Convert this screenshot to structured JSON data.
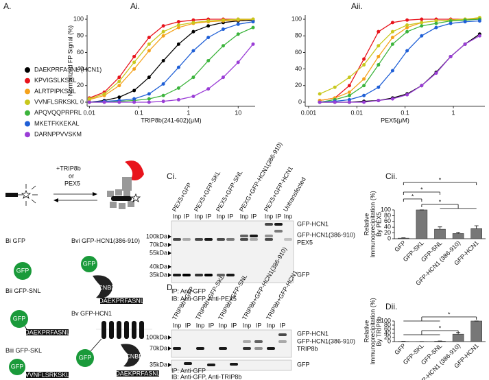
{
  "panel_labels": {
    "a": "A.",
    "ai": "Ai.",
    "aii": "Aii.",
    "ci": "Ci.",
    "cii": "Cii.",
    "d": "D.",
    "dii": "Dii."
  },
  "chart_data": [
    {
      "type": "line",
      "xscale": "log",
      "x": [
        0.01,
        0.02,
        0.04,
        0.08,
        0.16,
        0.31,
        0.63,
        1.25,
        2.5,
        5,
        10,
        20
      ],
      "xlim": [
        0.009,
        22
      ],
      "xticks": [
        0.01,
        0.1,
        1,
        10
      ],
      "ylim": [
        -5,
        105
      ],
      "yticks": [
        0,
        20,
        40,
        60,
        80,
        100
      ],
      "x_label": "TRIP8b(241-602)(μM)",
      "y_label": "Normalized FP Signal (%)",
      "series": [
        {
          "name": "DAEKPRFASNL (HCN1)",
          "color": "#000000",
          "values": [
            0,
            2,
            6,
            14,
            30,
            50,
            70,
            85,
            92,
            96,
            98,
            99
          ]
        },
        {
          "name": "KPVIGSLKSKL",
          "color": "#e8141c",
          "values": [
            5,
            12,
            30,
            55,
            78,
            92,
            97,
            99,
            100,
            100,
            100,
            100
          ]
        },
        {
          "name": "ALRTPIPKSNL",
          "color": "#f5a21b",
          "values": [
            3,
            8,
            20,
            40,
            62,
            80,
            90,
            95,
            97,
            98,
            99,
            100
          ]
        },
        {
          "name": "VVNFLSRKSKL",
          "color": "#c8c81e",
          "values": [
            4,
            10,
            25,
            48,
            70,
            85,
            93,
            96,
            98,
            99,
            100,
            100
          ]
        },
        {
          "name": "APQVQQPRPRL",
          "color": "#3cb43c",
          "values": [
            0,
            0,
            1,
            2,
            4,
            8,
            17,
            30,
            50,
            68,
            82,
            90
          ]
        },
        {
          "name": "MKETFKKEKAL",
          "color": "#1f5fd6",
          "values": [
            0,
            1,
            2,
            4,
            10,
            22,
            42,
            62,
            78,
            88,
            94,
            97
          ]
        },
        {
          "name": "DARNPPVVSKM",
          "color": "#9a3dd6",
          "values": [
            0,
            0,
            0,
            0,
            0,
            1,
            3,
            7,
            16,
            30,
            48,
            70
          ]
        }
      ]
    },
    {
      "type": "line",
      "xscale": "log",
      "x": [
        0.0017,
        0.0035,
        0.007,
        0.014,
        0.028,
        0.055,
        0.11,
        0.22,
        0.44,
        0.88,
        1.75,
        3.5
      ],
      "xlim": [
        0.00085,
        4.5
      ],
      "xticks": [
        0.001,
        0.01,
        0.1,
        1
      ],
      "ylim": [
        -5,
        105
      ],
      "yticks": [
        0,
        20,
        40,
        60,
        80,
        100
      ],
      "x_label": "PEX5(μM)",
      "series": [
        {
          "color": "#000000",
          "values": [
            0,
            0,
            0,
            1,
            2,
            5,
            10,
            20,
            36,
            55,
            70,
            82
          ]
        },
        {
          "color": "#e8141c",
          "values": [
            2,
            5,
            20,
            52,
            85,
            96,
            99,
            100,
            100,
            100,
            100,
            100
          ]
        },
        {
          "color": "#f5a21b",
          "values": [
            2,
            5,
            12,
            28,
            55,
            78,
            90,
            96,
            98,
            99,
            100,
            101
          ]
        },
        {
          "color": "#c8c81e",
          "values": [
            10,
            18,
            30,
            45,
            68,
            85,
            93,
            96,
            98,
            99,
            100,
            102
          ]
        },
        {
          "color": "#3cb43c",
          "values": [
            0,
            3,
            8,
            20,
            45,
            70,
            85,
            92,
            95,
            98,
            99,
            100
          ]
        },
        {
          "color": "#1f5fd6",
          "values": [
            0,
            1,
            3,
            8,
            18,
            38,
            62,
            80,
            90,
            95,
            97,
            98
          ]
        },
        {
          "color": "#9a3dd6",
          "values": [
            0,
            0,
            0,
            0,
            2,
            4,
            9,
            20,
            35,
            55,
            70,
            80
          ]
        }
      ]
    },
    {
      "type": "bar",
      "categories": [
        "GFP",
        "GFP-SKL",
        "GFP-SNL",
        "GFP-HCN1 (386-910)",
        "GFP-HCN1"
      ],
      "values": [
        2,
        100,
        33,
        18,
        35
      ],
      "errors": [
        1,
        0,
        8,
        4,
        10
      ],
      "color": "#777777",
      "ylim": [
        0,
        100
      ],
      "yticks": [
        0,
        20,
        40,
        60,
        80,
        100
      ],
      "y_label": [
        "Relative",
        "Immunoprecipitation (%)",
        "By PEX5"
      ],
      "annotations": [
        "*",
        "*",
        "*",
        "*"
      ]
    },
    {
      "type": "bar",
      "categories": [
        "GFP",
        "GFP-SKL",
        "GFP-SNL",
        "GFP-HCN1 (386-910)",
        "GFP-HCN1"
      ],
      "values": [
        1,
        0.5,
        2,
        36,
        100
      ],
      "errors": [
        0.5,
        0,
        1,
        8,
        0
      ],
      "color": "#777777",
      "ylim": [
        0,
        100
      ],
      "yticks": [
        0,
        20,
        40,
        60,
        80,
        100
      ],
      "y_label": [
        "Relative",
        "Immunoprecipitation (%)",
        "By TRIP8b"
      ],
      "annotations": [
        "*",
        "*"
      ]
    }
  ],
  "scheme": {
    "reagent": "+TRIP8b",
    "or": "or",
    "alt": "PEX5"
  },
  "constructs": [
    {
      "id": "Bi",
      "name": "GFP",
      "gfp": "GFP"
    },
    {
      "id": "Bii",
      "name": "GFP-SNL",
      "gfp": "GFP",
      "tag": "DAEKPRFASNL"
    },
    {
      "id": "Biii",
      "name": "GFP-SKL",
      "gfp": "GFP",
      "tag": "VVNFLSRKSKL"
    },
    {
      "id": "Bvi",
      "name": "GFP-HCN1(386-910)",
      "gfp": "GFP",
      "domain": "CNBD",
      "tag": "DAEKPRFASNL"
    },
    {
      "id": "Bv",
      "name": "GFP-HCN1",
      "gfp": "GFP",
      "domain": "CNBD",
      "tag": "DAEKPRFASNL"
    }
  ],
  "blots": [
    {
      "lanes": [
        "PEX5+GFP",
        "PEX5+GFP-SKL",
        "PEX5+GFP-SNL",
        "PEXG+GFP-HCN1(386-910)",
        "PEX5+GFP-HCN1",
        "Untransfected"
      ],
      "lane_sub": [
        "Inp",
        "IP"
      ],
      "markers": [
        "100kDa",
        "70kDa",
        "55kDa",
        "40kDa",
        "35kDa"
      ],
      "band_labels": [
        "GFP-HCN1",
        "GFP-HCN1(386-910)",
        "PEX5",
        "GFP"
      ],
      "footer": [
        "IP: Anti-GFP",
        "IB: Anti-GFP, Anti-PEX5"
      ]
    },
    {
      "lanes": [
        "TRIP8b+GFP",
        "TRIP8b+GFP-SKL",
        "TRIP8b+GFP-SNL",
        "TRIP8b+GFP-HCN1(386-910)",
        "TRIP8b+GFP-HCN1"
      ],
      "lane_sub": [
        "Inp",
        "IP"
      ],
      "markers": [
        "100kDa",
        "70kDa",
        "35kDa"
      ],
      "band_labels": [
        "GFP-HCN1",
        "GFP-HCN1(386-910)",
        "TRIP8b",
        "GFP"
      ],
      "footer": [
        "IP: Anti-GFP",
        "IB: Anti-GFP, Anti-TRIP8b"
      ]
    }
  ]
}
